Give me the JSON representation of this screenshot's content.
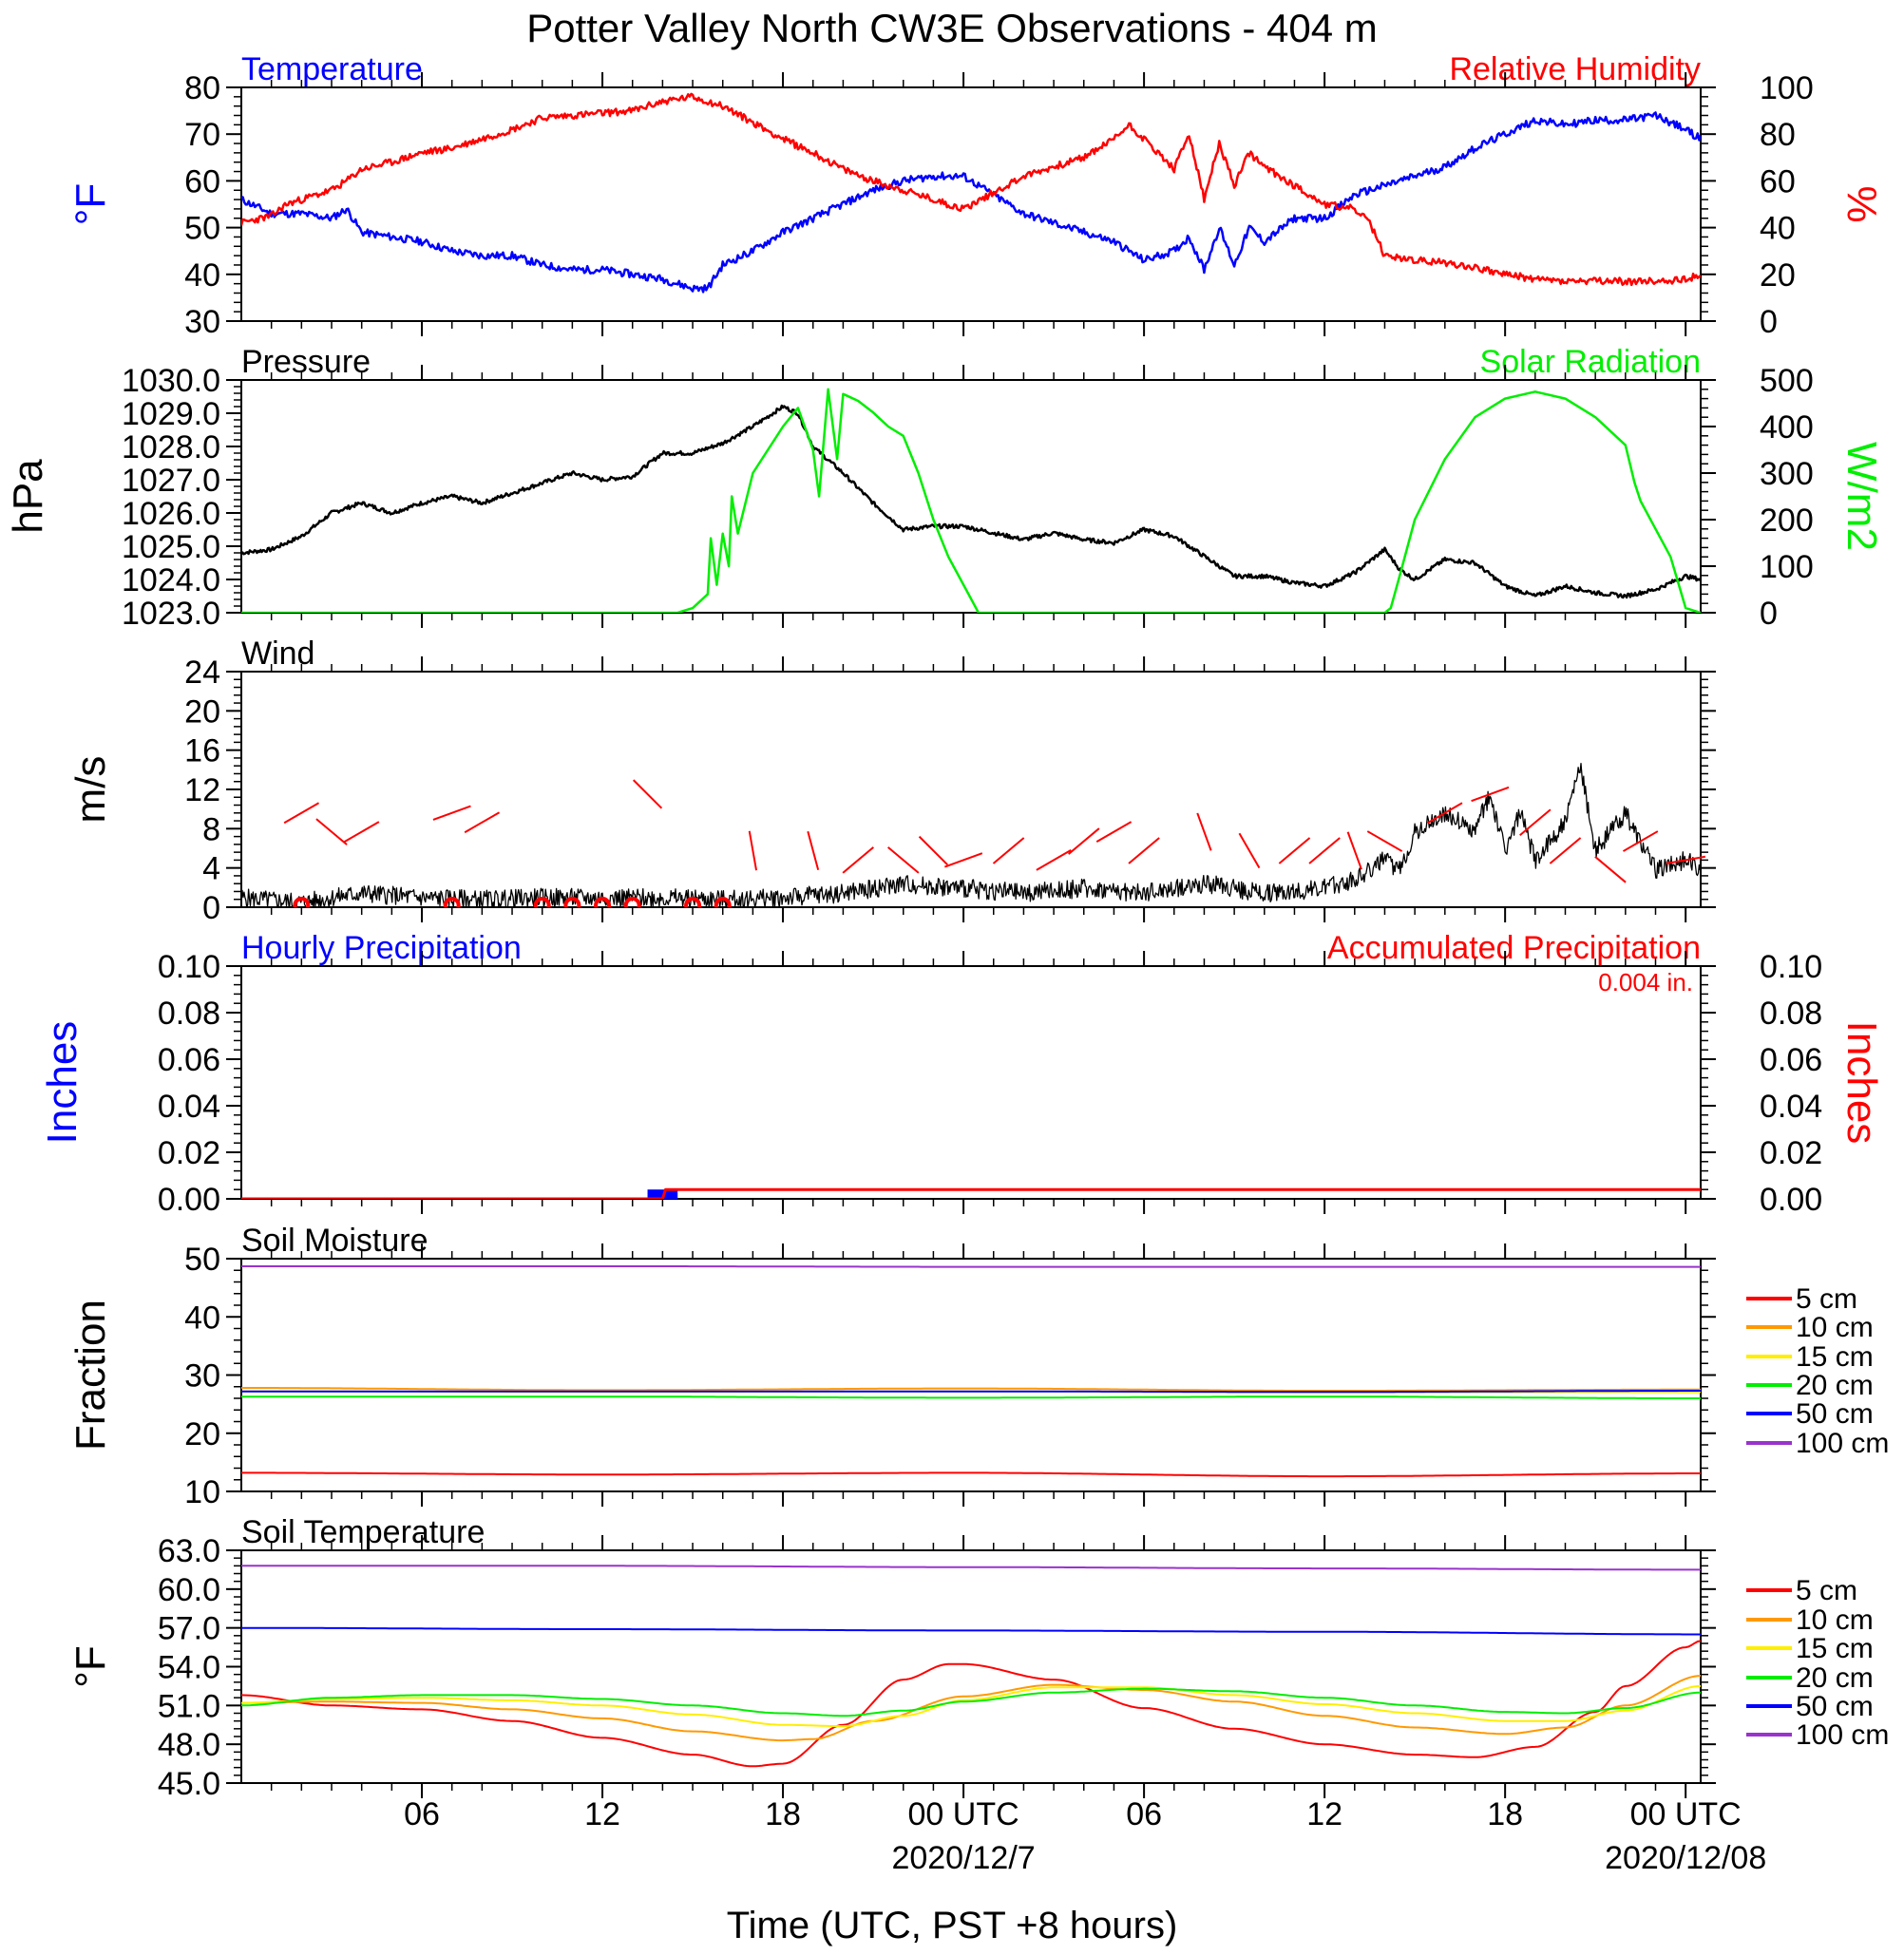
{
  "title": "Potter Valley North CW3E Observations - 404 m",
  "xlabel": "Time (UTC, PST +8 hours)",
  "x_ticks": [
    {
      "h": 6,
      "label": "06"
    },
    {
      "h": 12,
      "label": "12"
    },
    {
      "h": 18,
      "label": "18"
    },
    {
      "h": 24,
      "label": "00 UTC",
      "date": "2020/12/7"
    },
    {
      "h": 30,
      "label": "06"
    },
    {
      "h": 36,
      "label": "12"
    },
    {
      "h": 42,
      "label": "18"
    },
    {
      "h": 48,
      "label": "00 UTC",
      "date": "2020/12/08"
    }
  ],
  "colors": {
    "red": "#ff0000",
    "blue": "#0000ff",
    "green": "#00ee00",
    "black": "#000000",
    "orange": "#ff9900",
    "yellow": "#ffee00",
    "purple": "#9933cc"
  },
  "chart_data": [
    {
      "type": "line",
      "title_left": "Temperature",
      "title_right": "Relative Humidity",
      "ylabel": "°F",
      "ylabel_right": "%",
      "x_unit": "hours UTC from 2020/12/6 00 UTC",
      "ylim": [
        30,
        80
      ],
      "ylim_right": [
        0,
        100
      ],
      "yticks": [
        "30",
        "40",
        "50",
        "60",
        "70",
        "80"
      ],
      "yticks_right": [
        "0",
        "20",
        "40",
        "60",
        "80",
        "100"
      ],
      "series": [
        {
          "name": "Temperature",
          "color": "#0000ff",
          "axis": "left",
          "x": [
            0,
            1,
            2,
            3,
            3.5,
            4,
            5,
            6,
            7,
            8,
            9,
            10,
            11,
            12,
            13,
            14,
            15,
            15.5,
            16,
            17,
            18,
            19,
            20,
            21,
            22,
            23,
            24,
            25,
            26,
            27,
            28,
            29,
            30,
            31,
            31.5,
            32,
            32.5,
            33,
            33.5,
            34,
            35,
            36,
            37,
            38,
            39,
            40,
            41,
            42,
            43,
            44,
            45,
            46,
            47,
            48,
            48.5
          ],
          "y": [
            56,
            53,
            53,
            52,
            54,
            49,
            48,
            47,
            45,
            44,
            44,
            42,
            41,
            41,
            40,
            39,
            37,
            37,
            42,
            45,
            49,
            52,
            55,
            58,
            60,
            61,
            61,
            57,
            53,
            51,
            49,
            47,
            43,
            45,
            48,
            41,
            50,
            42,
            50,
            47,
            52,
            52,
            57,
            59,
            61,
            63,
            67,
            70,
            73,
            72,
            73,
            73,
            74,
            71,
            69
          ]
        },
        {
          "name": "Relative Humidity",
          "color": "#ff0000",
          "axis": "right",
          "x": [
            0,
            1,
            1.5,
            2,
            3,
            3.5,
            4,
            5,
            6,
            7,
            8,
            9,
            10,
            11,
            12,
            13,
            14,
            15,
            16,
            17,
            18,
            19,
            20,
            21,
            22,
            23,
            24,
            25,
            26,
            27,
            28,
            29,
            29.5,
            30,
            31,
            31.5,
            32,
            32.5,
            33,
            33.5,
            34,
            35,
            36,
            37,
            37.5,
            38,
            39,
            40,
            41,
            42,
            43,
            44,
            45,
            46,
            47,
            48,
            48.5
          ],
          "y": [
            42,
            45,
            50,
            52,
            56,
            60,
            65,
            68,
            72,
            74,
            78,
            82,
            87,
            88,
            89,
            90,
            94,
            96,
            92,
            85,
            78,
            72,
            65,
            60,
            56,
            52,
            48,
            55,
            62,
            66,
            70,
            78,
            84,
            78,
            65,
            80,
            52,
            76,
            58,
            72,
            66,
            58,
            50,
            48,
            42,
            28,
            26,
            25,
            23,
            20,
            18,
            17,
            17,
            17,
            17,
            18,
            20
          ]
        }
      ]
    },
    {
      "type": "line",
      "title_left": "Pressure",
      "title_right": "Solar Radiation",
      "ylabel": "hPa",
      "ylabel_right": "W/m2",
      "ylim": [
        1023,
        1030
      ],
      "ylim_right": [
        0,
        500
      ],
      "yticks": [
        "1023.0",
        "1024.0",
        "1025.0",
        "1026.0",
        "1027.0",
        "1028.0",
        "1029.0",
        "1030.0"
      ],
      "yticks_right": [
        "0",
        "100",
        "200",
        "300",
        "400",
        "500"
      ],
      "series": [
        {
          "name": "Pressure",
          "color": "#000000",
          "axis": "left",
          "x": [
            0,
            1,
            2,
            3,
            4,
            5,
            6,
            7,
            8,
            9,
            10,
            11,
            12,
            13,
            14,
            15,
            16,
            17,
            18,
            18.5,
            19,
            20,
            21,
            22,
            23,
            24,
            25,
            26,
            27,
            28,
            29,
            30,
            31,
            32,
            33,
            34,
            35,
            36,
            37,
            38,
            38.5,
            39,
            40,
            41,
            42,
            43,
            44,
            45,
            46,
            47,
            48,
            48.5
          ],
          "y": [
            1024.8,
            1024.9,
            1025.3,
            1026.0,
            1026.3,
            1026.0,
            1026.3,
            1026.5,
            1026.3,
            1026.6,
            1026.9,
            1027.2,
            1027.0,
            1027.1,
            1027.8,
            1027.8,
            1028.1,
            1028.6,
            1029.2,
            1029.0,
            1028.0,
            1027.2,
            1026.3,
            1025.5,
            1025.6,
            1025.6,
            1025.4,
            1025.2,
            1025.4,
            1025.2,
            1025.1,
            1025.5,
            1025.3,
            1024.7,
            1024.1,
            1024.1,
            1023.9,
            1023.8,
            1024.2,
            1024.9,
            1024.3,
            1024.0,
            1024.6,
            1024.5,
            1023.8,
            1023.5,
            1023.8,
            1023.6,
            1023.5,
            1023.7,
            1024.1,
            1024.0
          ]
        },
        {
          "name": "Solar Radiation",
          "color": "#00ee00",
          "axis": "right",
          "x": [
            0,
            14.5,
            15,
            15.5,
            15.6,
            15.8,
            16,
            16.2,
            16.3,
            16.5,
            17,
            18,
            18.5,
            19,
            19.2,
            19.5,
            19.8,
            20,
            20.5,
            21,
            21.5,
            22,
            22.5,
            23,
            23.5,
            24,
            24.5,
            38,
            38.2,
            38.5,
            39,
            40,
            41,
            42,
            43,
            44,
            45,
            46,
            46.3,
            46.5,
            47,
            47.5,
            48,
            48.5
          ],
          "y": [
            0,
            0,
            10,
            40,
            160,
            60,
            170,
            100,
            250,
            170,
            300,
            400,
            440,
            350,
            250,
            480,
            330,
            470,
            455,
            430,
            400,
            380,
            300,
            200,
            120,
            60,
            0,
            0,
            10,
            80,
            200,
            330,
            420,
            460,
            475,
            460,
            420,
            360,
            280,
            240,
            180,
            120,
            10,
            0
          ]
        }
      ]
    },
    {
      "type": "line",
      "title_left": "Wind",
      "ylabel": "m/s",
      "ylim": [
        0,
        25
      ],
      "yticks": [
        "0",
        "4",
        "8",
        "12",
        "16",
        "20",
        "24"
      ],
      "series": [
        {
          "name": "Wind",
          "color": "#000000",
          "x": [
            0,
            2,
            4,
            6,
            8,
            10,
            12,
            14,
            16,
            18,
            20,
            22,
            24,
            26,
            28,
            30,
            32,
            34,
            36,
            37,
            38,
            38.5,
            39,
            40,
            41,
            41.5,
            42,
            42.5,
            43,
            44,
            44.5,
            45,
            45.5,
            46,
            47,
            48,
            48.5
          ],
          "y": [
            1,
            0.5,
            1.5,
            1,
            0.8,
            1,
            1,
            1,
            0.8,
            1,
            1.5,
            2.5,
            2,
            1.5,
            2,
            1.5,
            2.5,
            1.5,
            2,
            3,
            5,
            4,
            8,
            10,
            8,
            12,
            6,
            10,
            5,
            9,
            15,
            6,
            8,
            10,
            4,
            5,
            4
          ]
        }
      ],
      "calm_marker_hours": [
        2,
        7,
        10,
        11,
        12,
        13,
        15,
        16
      ]
    },
    {
      "type": "bar",
      "title_left": "Hourly Precipitation",
      "title_right": "Accumulated Precipitation",
      "total_label": "0.004 in.",
      "ylabel": "Inches",
      "ylabel_right": "Inches",
      "ylim": [
        0,
        0.1
      ],
      "ylim_right": [
        0,
        0.1
      ],
      "yticks": [
        "0.00",
        "0.02",
        "0.04",
        "0.06",
        "0.08",
        "0.10"
      ],
      "yticks_right": [
        "0.00",
        "0.02",
        "0.04",
        "0.06",
        "0.08",
        "0.10"
      ],
      "series": [
        {
          "name": "Hourly Precipitation",
          "color": "#0000ff",
          "x": [
            13.5
          ],
          "values": [
            0.004
          ]
        },
        {
          "name": "Accumulated Precipitation",
          "color": "#ff0000",
          "x": [
            0,
            14,
            14.1,
            48.5
          ],
          "y": [
            0,
            0,
            0.004,
            0.004
          ]
        }
      ]
    },
    {
      "type": "line",
      "title_left": "Soil Moisture",
      "ylabel": "Fraction",
      "ylim": [
        10,
        50
      ],
      "yticks": [
        "10",
        "20",
        "30",
        "40",
        "50"
      ],
      "series": [
        {
          "name": "5 cm",
          "color": "#ff0000",
          "x": [
            0,
            12,
            24,
            36,
            48.5
          ],
          "y": [
            13.2,
            12.9,
            13.2,
            12.6,
            13.1
          ]
        },
        {
          "name": "10 cm",
          "color": "#ff9900",
          "x": [
            0,
            12,
            24,
            36,
            48.5
          ],
          "y": [
            27.8,
            27.4,
            27.7,
            27.3,
            27.5
          ]
        },
        {
          "name": "15 cm",
          "color": "#ffee00",
          "x": [
            0,
            12,
            24,
            36,
            48.5
          ],
          "y": [
            27.2,
            27.1,
            27.2,
            27.0,
            27.1
          ]
        },
        {
          "name": "20 cm",
          "color": "#00ee00",
          "x": [
            0,
            12,
            24,
            36,
            48.5
          ],
          "y": [
            26.3,
            26.3,
            26.1,
            26.3,
            26.0
          ]
        },
        {
          "name": "50 cm",
          "color": "#0000ff",
          "x": [
            0,
            12,
            24,
            36,
            48.5
          ],
          "y": [
            27.2,
            27.2,
            27.2,
            27.1,
            27.3
          ]
        },
        {
          "name": "100 cm",
          "color": "#9933cc",
          "x": [
            0,
            12,
            24,
            36,
            48.5
          ],
          "y": [
            48.7,
            48.7,
            48.6,
            48.6,
            48.6
          ]
        }
      ]
    },
    {
      "type": "line",
      "title_left": "Soil Temperature",
      "ylabel": "°F",
      "ylim": [
        45,
        63
      ],
      "yticks": [
        "45.0",
        "48.0",
        "51.0",
        "54.0",
        "57.0",
        "60.0",
        "63.0"
      ],
      "series": [
        {
          "name": "5 cm",
          "color": "#ff0000",
          "x": [
            0,
            3,
            6,
            9,
            12,
            15,
            17,
            18,
            20,
            22,
            23.5,
            24,
            27,
            30,
            33,
            36,
            39,
            41,
            43,
            45,
            46,
            48,
            48.5
          ],
          "y": [
            51.8,
            51.0,
            50.7,
            49.8,
            48.5,
            47.2,
            46.3,
            46.5,
            49.5,
            53.0,
            54.2,
            54.2,
            53.0,
            50.8,
            49.2,
            48.0,
            47.2,
            47.0,
            47.8,
            50.5,
            52.5,
            55.5,
            56.0
          ]
        },
        {
          "name": "10 cm",
          "color": "#ff9900",
          "x": [
            0,
            3,
            6,
            9,
            12,
            15,
            18,
            19,
            21,
            24,
            27,
            30,
            33,
            36,
            39,
            42,
            44,
            46,
            48.5
          ],
          "y": [
            51.2,
            51.3,
            51.2,
            50.7,
            50.0,
            49.0,
            48.3,
            48.4,
            49.8,
            51.7,
            52.6,
            52.2,
            51.3,
            50.2,
            49.3,
            48.8,
            49.3,
            51.0,
            53.3
          ]
        },
        {
          "name": "15 cm",
          "color": "#ffee00",
          "x": [
            0,
            3,
            6,
            9,
            12,
            15,
            18,
            20,
            22,
            24,
            27,
            30,
            33,
            36,
            39,
            42,
            44,
            46,
            48.5
          ],
          "y": [
            51.2,
            51.5,
            51.6,
            51.4,
            51.0,
            50.3,
            49.5,
            49.4,
            50.2,
            51.4,
            52.4,
            52.4,
            51.8,
            51.1,
            50.4,
            49.8,
            49.8,
            50.6,
            52.5
          ]
        },
        {
          "name": "20 cm",
          "color": "#00ee00",
          "x": [
            0,
            3,
            6,
            9,
            12,
            15,
            18,
            20,
            22,
            24,
            27,
            30,
            33,
            36,
            39,
            42,
            44,
            46,
            48.5
          ],
          "y": [
            51.0,
            51.6,
            51.8,
            51.8,
            51.5,
            51.0,
            50.4,
            50.2,
            50.6,
            51.3,
            52.0,
            52.3,
            52.1,
            51.6,
            51.0,
            50.5,
            50.4,
            50.8,
            52.0
          ]
        },
        {
          "name": "50 cm",
          "color": "#0000ff",
          "x": [
            0,
            12,
            24,
            36,
            48.5
          ],
          "y": [
            57.0,
            56.9,
            56.8,
            56.7,
            56.5
          ]
        },
        {
          "name": "100 cm",
          "color": "#9933cc",
          "x": [
            0,
            12,
            24,
            36,
            48.5
          ],
          "y": [
            61.8,
            61.8,
            61.7,
            61.6,
            61.5
          ]
        }
      ]
    }
  ]
}
